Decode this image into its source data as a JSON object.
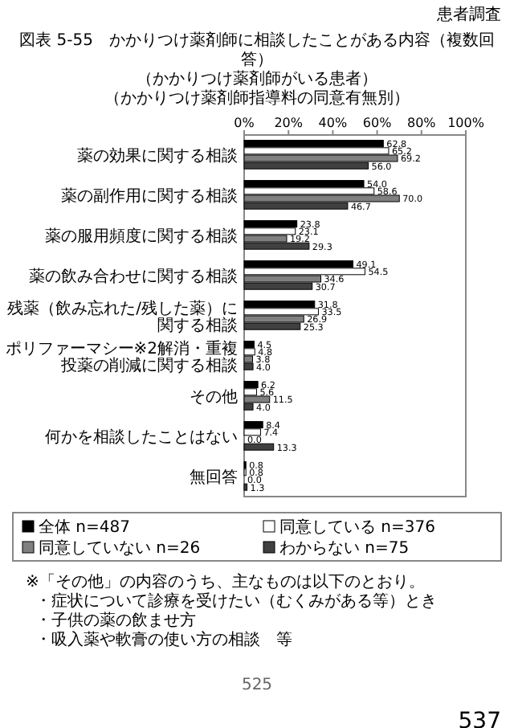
{
  "chart_data": {
    "type": "bar",
    "orientation": "horizontal",
    "title": "図表 5-55　かかりつけ薬剤師に相談したことがある内容（複数回答）",
    "subtitle": "（かかりつけ薬剤師がいる患者）",
    "categories": [
      "薬の効果に関する相談",
      "薬の副作用に関する相談",
      "薬の服用頻度に関する相談",
      "薬の飲み合わせに関する相談",
      "残薬（飲み忘れた/残した薬）に関する相談",
      "ポリファーマシー※2解消・重複投薬の削減に関する相談",
      "その他",
      "何かを相談したことはない",
      "無回答"
    ],
    "series": [
      {
        "name": "全体 n=487",
        "color": "#000000",
        "values": [
          62.8,
          54.0,
          23.8,
          49.1,
          31.8,
          4.5,
          6.2,
          8.4,
          0.8
        ],
        "value_labels": [
          "62.8",
          "54.0",
          "23.8",
          "49.1",
          "31.8",
          "4.5",
          "6.2",
          "8.4",
          "0.8"
        ]
      },
      {
        "name": "同意している n=376",
        "color": "#ffffff",
        "values": [
          65.2,
          58.6,
          23.1,
          54.5,
          33.5,
          4.8,
          5.6,
          7.4,
          0.8
        ],
        "value_labels": [
          "65.2",
          "58.6",
          "23.1",
          "54.5",
          "33.5",
          "4.8",
          "5.6",
          "7.4",
          "0.8"
        ]
      },
      {
        "name": "同意していない n=26",
        "color": "#808080",
        "values": [
          69.2,
          70.0,
          19.2,
          34.6,
          26.9,
          3.8,
          11.5,
          0.0,
          0.0
        ],
        "value_labels": [
          "69.2",
          "70.0",
          "19.2",
          "34.6",
          "26.9",
          "3.8",
          "11.5",
          "0.0",
          "0.0"
        ]
      },
      {
        "name": "わからない n=75",
        "color": "#404040",
        "values": [
          56.0,
          46.7,
          29.3,
          30.7,
          25.3,
          4.0,
          4.0,
          13.3,
          1.3
        ],
        "value_labels": [
          "56.0",
          "46.7",
          "29.3",
          "30.7",
          "25.3",
          "4.0",
          "4.0",
          "13.3",
          "1.3"
        ]
      }
    ],
    "xlim": [
      0,
      100
    ],
    "xticks": [
      {
        "value": 0,
        "label": "0%"
      },
      {
        "value": 20,
        "label": "20%"
      },
      {
        "value": 40,
        "label": "40%"
      },
      {
        "value": 60,
        "label": "60%"
      },
      {
        "value": 80,
        "label": "80%"
      },
      {
        "value": 100,
        "label": "100%"
      }
    ],
    "legend": "bottom",
    "annotations": [
      "患者調査",
      "（かかりつけ薬剤師指導料の同意有無別）",
      "※「その他」の内容のうち、主なものは以下のとおり。",
      "・症状について診療を受けたい（むくみがある等）とき",
      "・子供の薬の飲ませ方",
      "・吸入薬や軟膏の使い方の相談　等",
      "525",
      "537"
    ]
  }
}
